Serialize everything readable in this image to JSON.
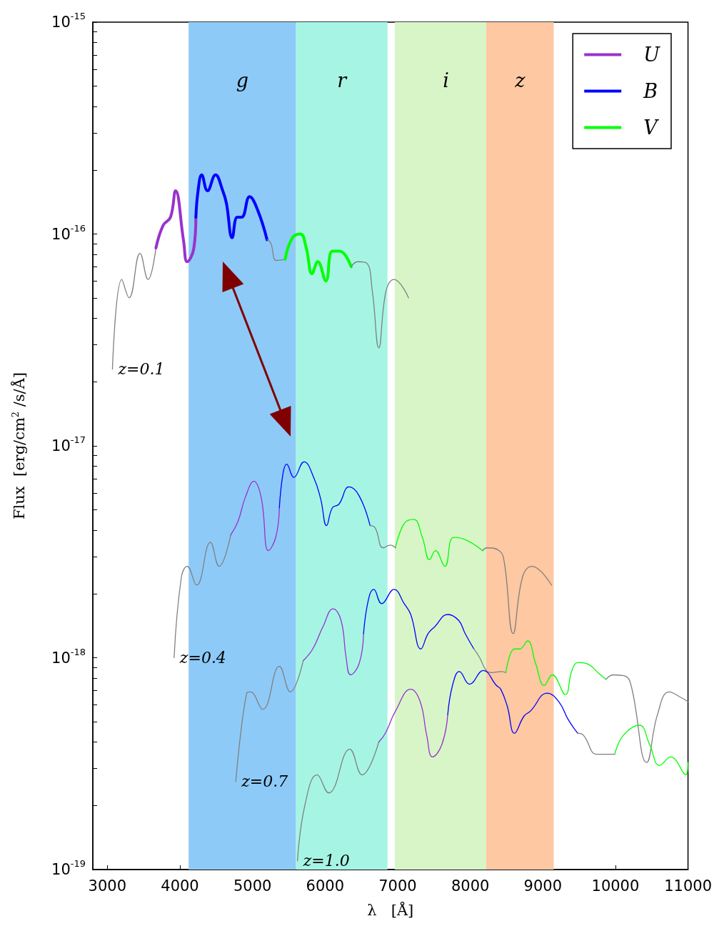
{
  "chart_data": {
    "type": "line",
    "xlabel": "λ   [Å]",
    "ylabel": "Flux  [erg/cm$^{2}$ /s/Å]",
    "xlim": [
      2800,
      11000
    ],
    "xticks": [
      3000,
      4000,
      5000,
      6000,
      7000,
      8000,
      9000,
      10000,
      11000
    ],
    "ylim": [
      1e-19,
      1e-15
    ],
    "yticks": [
      {
        "value": 1e-19,
        "label": "10$^{-19}$"
      },
      {
        "value": 2e-19,
        "label": null
      },
      {
        "value": 3e-19,
        "label": null
      },
      {
        "value": 4e-19,
        "label": null
      },
      {
        "value": 5e-19,
        "label": null
      },
      {
        "value": 6e-19,
        "label": null
      },
      {
        "value": 7e-19,
        "label": null
      },
      {
        "value": 8e-19,
        "label": null
      },
      {
        "value": 9e-19,
        "label": null
      },
      {
        "value": 1e-18,
        "label": "10$^{-18}$"
      },
      {
        "value": 2e-18,
        "label": null
      },
      {
        "value": 3e-18,
        "label": null
      },
      {
        "value": 4e-18,
        "label": null
      },
      {
        "value": 5e-18,
        "label": null
      },
      {
        "value": 6e-18,
        "label": null
      },
      {
        "value": 7e-18,
        "label": null
      },
      {
        "value": 8e-18,
        "label": null
      },
      {
        "value": 9e-18,
        "label": null
      },
      {
        "value": 1e-17,
        "label": "10$^{-17}$"
      },
      {
        "value": 2e-17,
        "label": null
      },
      {
        "value": 3e-17,
        "label": null
      },
      {
        "value": 4e-17,
        "label": null
      },
      {
        "value": 5e-17,
        "label": null
      },
      {
        "value": 6e-17,
        "label": null
      },
      {
        "value": 7e-17,
        "label": null
      },
      {
        "value": 8e-17,
        "label": null
      },
      {
        "value": 9e-17,
        "label": null
      },
      {
        "value": 1e-16,
        "label": "10$^{-16}$"
      },
      {
        "value": 2e-16,
        "label": null
      },
      {
        "value": 3e-16,
        "label": null
      },
      {
        "value": 4e-16,
        "label": null
      },
      {
        "value": 5e-16,
        "label": null
      },
      {
        "value": 6e-16,
        "label": null
      },
      {
        "value": 7e-16,
        "label": null
      },
      {
        "value": 8e-16,
        "label": null
      },
      {
        "value": 9e-16,
        "label": null
      },
      {
        "value": 1e-15,
        "label": "10$^{-15}$"
      }
    ],
    "log": "y",
    "grid": false,
    "legend": "top right",
    "marker": "none",
    "line_style": "solid",
    "bands": [
      {
        "axis": "x",
        "from": 4120,
        "to": 5600,
        "label": "g",
        "color": "#8ecaf7"
      },
      {
        "axis": "x",
        "from": 5600,
        "to": 6860,
        "label": "r",
        "color": "#a6f5e4"
      },
      {
        "axis": "x",
        "from": 6960,
        "to": 8370,
        "label": "i",
        "color": "#d8f5c8"
      },
      {
        "axis": "x",
        "from": 8220,
        "to": 9150,
        "label": "z",
        "color": "#fdc8a2"
      }
    ],
    "annotations": [
      {
        "text": "z=0.1",
        "x": 3070,
        "y": 2.3e-17
      },
      {
        "text": "z=0.4",
        "x": 3920,
        "y": 1e-18
      },
      {
        "text": "z=0.7",
        "x": 4770,
        "y": 2.6e-19
      },
      {
        "text": "z=1.0",
        "x": 5620,
        "y": 1.1e-19
      }
    ],
    "series": [
      {
        "color": "#808080",
        "x": [
          3070,
          3200,
          3300,
          3450,
          3560,
          3670
        ],
        "values": [
          2.3e-17,
          6.1e-17,
          5e-17,
          8.1e-17,
          6.1e-17,
          8.6e-17
        ]
      },
      {
        "name": "U",
        "color": "#9932cc",
        "x": [
          3670,
          3770,
          3870,
          3940,
          4050,
          4100,
          4190,
          4220
        ],
        "values": [
          8.6e-17,
          1.1e-16,
          1.2e-16,
          1.6e-16,
          9.3e-17,
          7.4e-17,
          8.5e-17,
          1.2e-16
        ]
      },
      {
        "name": "B",
        "color": "#0000ff",
        "x": [
          4220,
          4250,
          4300,
          4380,
          4490,
          4590,
          4640,
          4720,
          4790,
          4850,
          4960,
          5070,
          5200
        ],
        "values": [
          1.2e-16,
          1.6e-16,
          1.9e-16,
          1.6e-16,
          1.9e-16,
          1.6e-16,
          1.4e-16,
          9.6e-17,
          1.2e-16,
          1.2e-16,
          1.5e-16,
          1.3e-16,
          9.4e-17
        ]
      },
      {
        "color": "#808080",
        "x": [
          5200,
          5250,
          5330,
          5450
        ],
        "values": [
          9.4e-17,
          9.1e-17,
          7.5e-17,
          7.6e-17
        ]
      },
      {
        "name": "V",
        "color": "#00ff00",
        "x": [
          5450,
          5550,
          5660,
          5740,
          5820,
          5900,
          6010,
          6100,
          6200,
          6360
        ],
        "values": [
          7.6e-17,
          9.6e-17,
          1e-16,
          8.6e-17,
          6.5e-17,
          7.4e-17,
          6e-17,
          8.3e-17,
          8.3e-17,
          7e-17
        ]
      },
      {
        "color": "#808080",
        "x": [
          6360,
          6450,
          6570,
          6650,
          6740,
          6840,
          6950,
          7150
        ],
        "values": [
          7e-17,
          7.4e-17,
          7.3e-17,
          5.4e-17,
          2.9e-17,
          5.4e-17,
          6.1e-17,
          5e-17
        ]
      },
      {
        "color": "#808080",
        "x": [
          3920,
          4020,
          4100,
          4230,
          4420,
          4540,
          4700
        ],
        "values": [
          1e-18,
          2.4e-18,
          2.7e-18,
          2.2e-18,
          3.5e-18,
          2.7e-18,
          3.8e-18
        ]
      },
      {
        "color": "#9932cc",
        "x": [
          4700,
          4800,
          4900,
          5020,
          5120,
          5220,
          5320,
          5370
        ],
        "values": [
          3.8e-18,
          4.4e-18,
          5.7e-18,
          6.8e-18,
          5.7e-18,
          3.2e-18,
          3.7e-18,
          5.1e-18
        ]
      },
      {
        "color": "#0000ff",
        "x": [
          5370,
          5420,
          5470,
          5570,
          5710,
          5850,
          5940,
          6020,
          6100,
          6190,
          6330,
          6470,
          6620
        ],
        "values": [
          5.1e-18,
          7.4e-18,
          8.2e-18,
          7.1e-18,
          8.4e-18,
          7e-18,
          5.6e-18,
          4.2e-18,
          5.1e-18,
          5.3e-18,
          6.4e-18,
          5.8e-18,
          4.2e-18
        ]
      },
      {
        "color": "#808080",
        "x": [
          6620,
          6690,
          6800,
          6900,
          6970
        ],
        "values": [
          4.2e-18,
          4.1e-18,
          3.3e-18,
          3.4e-18,
          3.3e-18
        ]
      },
      {
        "color": "#00ff00",
        "x": [
          6970,
          7090,
          7220,
          7340,
          7440,
          7520,
          7650,
          7770,
          7940,
          8170
        ],
        "values": [
          3.3e-18,
          4.3e-18,
          4.5e-18,
          3.7e-18,
          2.9e-18,
          3.2e-18,
          2.7e-18,
          3.7e-18,
          3.6e-18,
          3.2e-18
        ]
      },
      {
        "color": "#808080",
        "x": [
          8170,
          8230,
          8400,
          8470,
          8590,
          8720,
          8850,
          9120
        ],
        "values": [
          3.2e-18,
          3.3e-18,
          3.2e-18,
          2.8e-18,
          1.3e-18,
          2.4e-18,
          2.7e-18,
          2.2e-18
        ]
      },
      {
        "color": "#808080",
        "x": [
          4770,
          4920,
          4970,
          5140,
          5370,
          5520,
          5700
        ],
        "values": [
          2.6e-19,
          6.8e-19,
          6.9e-19,
          5.7e-19,
          9.1e-19,
          6.9e-19,
          9.7e-19
        ]
      },
      {
        "color": "#9932cc",
        "x": [
          5700,
          5830,
          5970,
          6110,
          6220,
          6290,
          6350,
          6470,
          6530
        ],
        "values": [
          9.7e-19,
          1.1e-18,
          1.4e-18,
          1.7e-18,
          1.5e-18,
          1e-18,
          8.3e-19,
          9.4e-19,
          1.3e-18
        ]
      },
      {
        "color": "#0000ff",
        "x": [
          6530,
          6600,
          6670,
          6780,
          6950,
          7090,
          7180,
          7320,
          7420,
          7510,
          7690,
          7840,
          7930,
          8050
        ],
        "values": [
          1.3e-18,
          1.9e-18,
          2.1e-18,
          1.8e-18,
          2.1e-18,
          1.8e-18,
          1.6e-18,
          1.1e-18,
          1.3e-18,
          1.4e-18,
          1.6e-18,
          1.5e-18,
          1.3e-18,
          1.1e-18
        ]
      },
      {
        "color": "#808080",
        "x": [
          8050,
          8130,
          8220,
          8290,
          8430,
          8490
        ],
        "values": [
          1.1e-18,
          1e-18,
          8.7e-19,
          8.5e-19,
          8.6e-19,
          8.5e-19
        ]
      },
      {
        "color": "#00ff00",
        "x": [
          8490,
          8610,
          8680,
          8790,
          8900,
          9020,
          9130,
          9310,
          9400,
          9490,
          9630,
          9760,
          9870
        ],
        "values": [
          8.5e-19,
          1.1e-18,
          1.1e-18,
          1.2e-18,
          9.4e-19,
          7.4e-19,
          8.3e-19,
          6.7e-19,
          8.7e-19,
          9.5e-19,
          9.3e-19,
          8.5e-19,
          7.9e-19
        ]
      },
      {
        "color": "#808080",
        "x": [
          9870,
          9970,
          10130,
          10220,
          10430,
          10580,
          10740,
          10900,
          11000
        ],
        "values": [
          7.9e-19,
          8.3e-19,
          8.2e-19,
          7.3e-19,
          3.2e-19,
          5.4e-19,
          6.9e-19,
          6.5e-19,
          6.2e-19
        ]
      },
      {
        "color": "#808080",
        "x": [
          5620,
          5720,
          5890,
          6050,
          6340,
          6510,
          6740
        ],
        "values": [
          1.1e-19,
          2e-19,
          2.8e-19,
          2.3e-19,
          3.7e-19,
          2.8e-19,
          4e-19
        ]
      },
      {
        "color": "#9932cc",
        "x": [
          6740,
          6830,
          6970,
          7180,
          7310,
          7400,
          7480,
          7610,
          7690
        ],
        "values": [
          4e-19,
          4.4e-19,
          5.6e-19,
          7.1e-19,
          6.2e-19,
          4.3e-19,
          3.4e-19,
          3.9e-19,
          5.4e-19
        ]
      },
      {
        "color": "#0000ff",
        "x": [
          7690,
          7760,
          7850,
          7990,
          8180,
          8360,
          8420,
          8510,
          8610,
          8740,
          8830,
          9060,
          9220,
          9350,
          9480
        ],
        "values": [
          5.4e-19,
          7.5e-19,
          8.6e-19,
          7.5e-19,
          8.7e-19,
          7.4e-19,
          7.1e-19,
          5.9e-19,
          4.4e-19,
          5.3e-19,
          5.6e-19,
          6.8e-19,
          6.2e-19,
          5.1e-19,
          4.4e-19
        ]
      },
      {
        "color": "#808080",
        "x": [
          9480,
          9560,
          9740,
          9850,
          9990
        ],
        "values": [
          4.4e-19,
          4.3e-19,
          3.5e-19,
          3.5e-19,
          3.5e-19
        ]
      },
      {
        "color": "#00ff00",
        "x": [
          9990,
          10110,
          10330,
          10470,
          10610,
          10760,
          10970,
          11000
        ],
        "values": [
          3.5e-19,
          4.3e-19,
          4.8e-19,
          3.9e-19,
          3.1e-19,
          3.4e-19,
          2.8e-19,
          3.2e-19
        ]
      }
    ]
  }
}
